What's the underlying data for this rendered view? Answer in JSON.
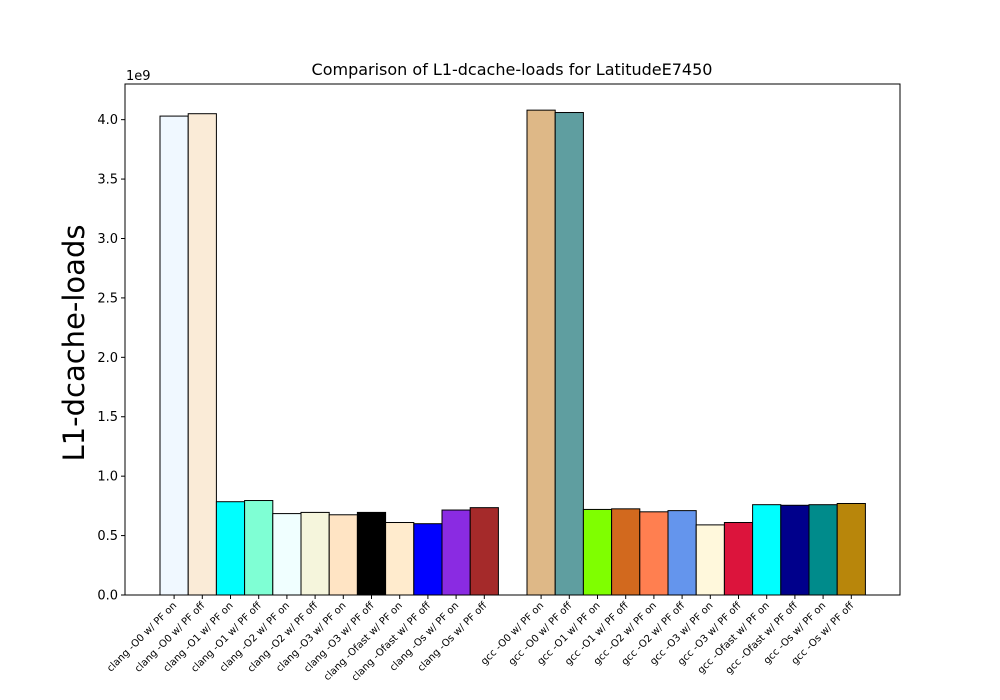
{
  "chart_data": {
    "type": "bar",
    "title": "Comparison of L1-dcache-loads for LatitudeE7450",
    "xlabel": "",
    "ylabel": "L1-dcache-loads",
    "y_offset_label": "1e9",
    "y_unit_multiplier": 1000000000,
    "ylim": [
      0,
      4.3
    ],
    "yticks": [
      "0.0",
      "0.5",
      "1.0",
      "1.5",
      "2.0",
      "2.5",
      "3.0",
      "3.5",
      "4.0"
    ],
    "ytick_values": [
      0,
      0.5,
      1.0,
      1.5,
      2.0,
      2.5,
      3.0,
      3.5,
      4.0
    ],
    "grid": false,
    "legend": "none",
    "groups": [
      {
        "categories": [
          "clang -O0 w/ PF on",
          "clang -O0 w/ PF off",
          "clang -O1 w/ PF on",
          "clang -O1 w/ PF off",
          "clang -O2 w/ PF on",
          "clang -O2 w/ PF off",
          "clang -O3 w/ PF on",
          "clang -O3 w/ PF off",
          "clang -Ofast w/ PF on",
          "clang -Ofast w/ PF off",
          "clang -Os w/ PF on",
          "clang -Os w/ PF off"
        ],
        "values": [
          4.03,
          4.05,
          0.785,
          0.795,
          0.685,
          0.695,
          0.675,
          0.695,
          0.61,
          0.6,
          0.715,
          0.735
        ],
        "colors": [
          "#f0f8ff",
          "#faebd7",
          "#00ffff",
          "#7fffd4",
          "#f0ffff",
          "#f5f5dc",
          "#ffe4c4",
          "#000000",
          "#ffebcd",
          "#0000ff",
          "#8a2be2",
          "#a52a2a"
        ]
      },
      {
        "categories": [
          "gcc -O0 w/ PF on",
          "gcc -O0 w/ PF off",
          "gcc -O1 w/ PF on",
          "gcc -O1 w/ PF off",
          "gcc -O2 w/ PF on",
          "gcc -O2 w/ PF off",
          "gcc -O3 w/ PF on",
          "gcc -O3 w/ PF off",
          "gcc -Ofast w/ PF on",
          "gcc -Ofast w/ PF off",
          "gcc -Os w/ PF on",
          "gcc -Os w/ PF off"
        ],
        "values": [
          4.08,
          4.06,
          0.72,
          0.725,
          0.7,
          0.71,
          0.59,
          0.61,
          0.76,
          0.755,
          0.76,
          0.77
        ],
        "colors": [
          "#deb887",
          "#5f9ea0",
          "#7fff00",
          "#d2691e",
          "#ff7f50",
          "#6495ed",
          "#fff8dc",
          "#dc143c",
          "#00ffff",
          "#00008b",
          "#008b8b",
          "#b8860b"
        ]
      }
    ]
  }
}
